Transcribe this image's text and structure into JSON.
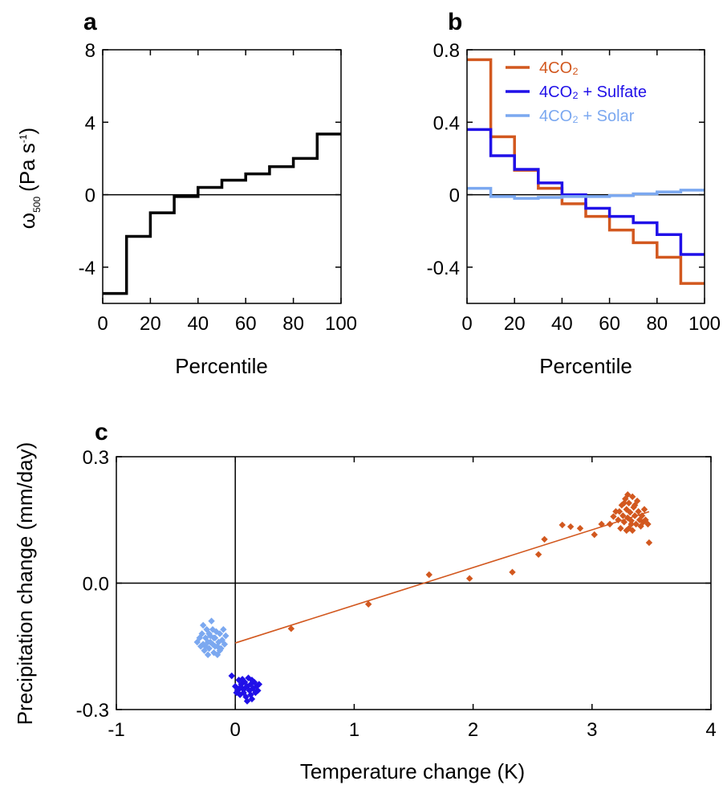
{
  "chart_data": [
    {
      "panel": "a",
      "type": "line",
      "step": true,
      "xlabel": "Percentile",
      "ylabel": "ω",
      "ylabel_sub": "500",
      "ylabel_unit": "(Pa s",
      "ylabel_sup": "-1",
      "ylabel_close": ")",
      "xlim": [
        0,
        100
      ],
      "ylim": [
        -6,
        8
      ],
      "xticks": [
        0,
        20,
        40,
        60,
        80,
        100
      ],
      "yticks": [
        8,
        4,
        0,
        -4
      ],
      "ytick_labels": [
        "8",
        "4",
        "0",
        "-4"
      ],
      "zero_line": true,
      "series": [
        {
          "color": "#000000",
          "bin_edges": [
            0,
            10,
            20,
            30,
            40,
            50,
            60,
            70,
            80,
            90,
            100
          ],
          "values": [
            -5.45,
            -2.3,
            -1.0,
            -0.1,
            0.4,
            0.8,
            1.15,
            1.55,
            2.0,
            3.35
          ]
        }
      ]
    },
    {
      "panel": "b",
      "type": "line",
      "step": true,
      "xlabel": "Percentile",
      "xlim": [
        0,
        100
      ],
      "ylim": [
        -0.6,
        0.8
      ],
      "xticks": [
        0,
        20,
        40,
        60,
        80,
        100
      ],
      "yticks": [
        0.8,
        0.4,
        0,
        -0.4
      ],
      "ytick_labels": [
        "0.8",
        "0.4",
        "0",
        "-0.4"
      ],
      "zero_line": true,
      "legend_position": "top-right",
      "series": [
        {
          "name": "4CO₂",
          "color": "#D2581F",
          "bin_edges": [
            0,
            10,
            20,
            30,
            40,
            50,
            60,
            70,
            80,
            90,
            100
          ],
          "values": [
            0.745,
            0.32,
            0.135,
            0.035,
            -0.05,
            -0.12,
            -0.195,
            -0.265,
            -0.345,
            -0.49
          ]
        },
        {
          "name": "4CO₂ + Sulfate",
          "color": "#2010E8",
          "bin_edges": [
            0,
            10,
            20,
            30,
            40,
            50,
            60,
            70,
            80,
            90,
            100
          ],
          "values": [
            0.36,
            0.215,
            0.14,
            0.065,
            0.0,
            -0.075,
            -0.12,
            -0.155,
            -0.22,
            -0.33
          ]
        },
        {
          "name": "4CO₂ + Solar",
          "color": "#7BA8F0",
          "bin_edges": [
            0,
            10,
            20,
            30,
            40,
            50,
            60,
            70,
            80,
            90,
            100
          ],
          "values": [
            0.035,
            -0.01,
            -0.02,
            -0.015,
            -0.01,
            -0.01,
            -0.005,
            0.005,
            0.015,
            0.025
          ]
        }
      ]
    },
    {
      "panel": "c",
      "type": "scatter",
      "xlabel": "Temperature change (K)",
      "ylabel": "Precipitation change (mm/day)",
      "xlim": [
        -1,
        4
      ],
      "ylim": [
        -0.3,
        0.3
      ],
      "xticks": [
        -1,
        0,
        1,
        2,
        3,
        4
      ],
      "yticks": [
        0.3,
        0.0,
        -0.3
      ],
      "ytick_labels": [
        "0.3",
        "0.0",
        "-0.3"
      ],
      "zero_lines": true,
      "series": [
        {
          "color": "#D2581F",
          "marker": "diamond",
          "points": [
            [
              0.47,
              -0.108
            ],
            [
              1.12,
              -0.05
            ],
            [
              1.63,
              0.02
            ],
            [
              1.97,
              0.011
            ],
            [
              2.33,
              0.026
            ],
            [
              2.55,
              0.068
            ],
            [
              2.6,
              0.104
            ],
            [
              2.75,
              0.138
            ],
            [
              2.82,
              0.134
            ],
            [
              2.9,
              0.13
            ],
            [
              3.02,
              0.115
            ],
            [
              3.08,
              0.14
            ],
            [
              3.15,
              0.14
            ],
            [
              3.18,
              0.158
            ],
            [
              3.2,
              0.17
            ],
            [
              3.22,
              0.15
            ],
            [
              3.24,
              0.13
            ],
            [
              3.25,
              0.185
            ],
            [
              3.26,
              0.16
            ],
            [
              3.27,
              0.145
            ],
            [
              3.28,
              0.2
            ],
            [
              3.29,
              0.175
            ],
            [
              3.3,
              0.155
            ],
            [
              3.31,
              0.13
            ],
            [
              3.31,
              0.19
            ],
            [
              3.32,
              0.168
            ],
            [
              3.33,
              0.148
            ],
            [
              3.34,
              0.205
            ],
            [
              3.34,
              0.125
            ],
            [
              3.35,
              0.18
            ],
            [
              3.36,
              0.16
            ],
            [
              3.37,
              0.14
            ],
            [
              3.38,
              0.195
            ],
            [
              3.39,
              0.17
            ],
            [
              3.4,
              0.15
            ],
            [
              3.41,
              0.135
            ],
            [
              3.42,
              0.16
            ],
            [
              3.43,
              0.145
            ],
            [
              3.44,
              0.175
            ],
            [
              3.45,
              0.15
            ],
            [
              3.47,
              0.14
            ],
            [
              3.48,
              0.096
            ],
            [
              3.3,
              0.21
            ],
            [
              3.27,
              0.19
            ],
            [
              3.36,
              0.185
            ],
            [
              3.29,
              0.125
            ],
            [
              3.33,
              0.14
            ],
            [
              3.23,
              0.17
            ]
          ],
          "fit": {
            "slope": 0.0895,
            "intercept": -0.142,
            "x_range": [
              0,
              3.48
            ]
          }
        },
        {
          "color": "#2010E8",
          "marker": "diamond",
          "points": [
            [
              -0.03,
              -0.22
            ],
            [
              0.0,
              -0.245
            ],
            [
              0.02,
              -0.255
            ],
            [
              0.03,
              -0.23
            ],
            [
              0.04,
              -0.265
            ],
            [
              0.05,
              -0.24
            ],
            [
              0.06,
              -0.25
            ],
            [
              0.07,
              -0.26
            ],
            [
              0.08,
              -0.235
            ],
            [
              0.09,
              -0.27
            ],
            [
              0.1,
              -0.245
            ],
            [
              0.11,
              -0.225
            ],
            [
              0.12,
              -0.255
            ],
            [
              0.13,
              -0.24
            ],
            [
              0.14,
              -0.275
            ],
            [
              0.15,
              -0.25
            ],
            [
              0.16,
              -0.235
            ],
            [
              0.17,
              -0.26
            ],
            [
              0.18,
              -0.245
            ],
            [
              0.19,
              -0.255
            ],
            [
              0.1,
              -0.28
            ],
            [
              0.06,
              -0.228
            ],
            [
              0.13,
              -0.265
            ],
            [
              0.01,
              -0.26
            ],
            [
              0.2,
              -0.24
            ],
            [
              0.08,
              -0.25
            ],
            [
              0.14,
              -0.23
            ],
            [
              0.04,
              -0.248
            ]
          ]
        },
        {
          "color": "#7BA8F0",
          "marker": "diamond",
          "points": [
            [
              -0.32,
              -0.14
            ],
            [
              -0.3,
              -0.13
            ],
            [
              -0.29,
              -0.15
            ],
            [
              -0.28,
              -0.12
            ],
            [
              -0.27,
              -0.145
            ],
            [
              -0.26,
              -0.16
            ],
            [
              -0.25,
              -0.13
            ],
            [
              -0.24,
              -0.11
            ],
            [
              -0.23,
              -0.14
            ],
            [
              -0.22,
              -0.155
            ],
            [
              -0.21,
              -0.125
            ],
            [
              -0.2,
              -0.09
            ],
            [
              -0.19,
              -0.145
            ],
            [
              -0.18,
              -0.165
            ],
            [
              -0.17,
              -0.13
            ],
            [
              -0.16,
              -0.115
            ],
            [
              -0.15,
              -0.15
            ],
            [
              -0.14,
              -0.14
            ],
            [
              -0.13,
              -0.12
            ],
            [
              -0.12,
              -0.155
            ],
            [
              -0.11,
              -0.135
            ],
            [
              -0.1,
              -0.11
            ],
            [
              -0.09,
              -0.145
            ],
            [
              -0.08,
              -0.125
            ],
            [
              -0.27,
              -0.1
            ],
            [
              -0.23,
              -0.17
            ],
            [
              -0.19,
              -0.11
            ],
            [
              -0.15,
              -0.17
            ],
            [
              -0.25,
              -0.15
            ],
            [
              -0.21,
              -0.14
            ],
            [
              -0.17,
              -0.15
            ],
            [
              -0.13,
              -0.16
            ],
            [
              -0.22,
              -0.12
            ],
            [
              -0.18,
              -0.13
            ]
          ]
        }
      ]
    }
  ]
}
